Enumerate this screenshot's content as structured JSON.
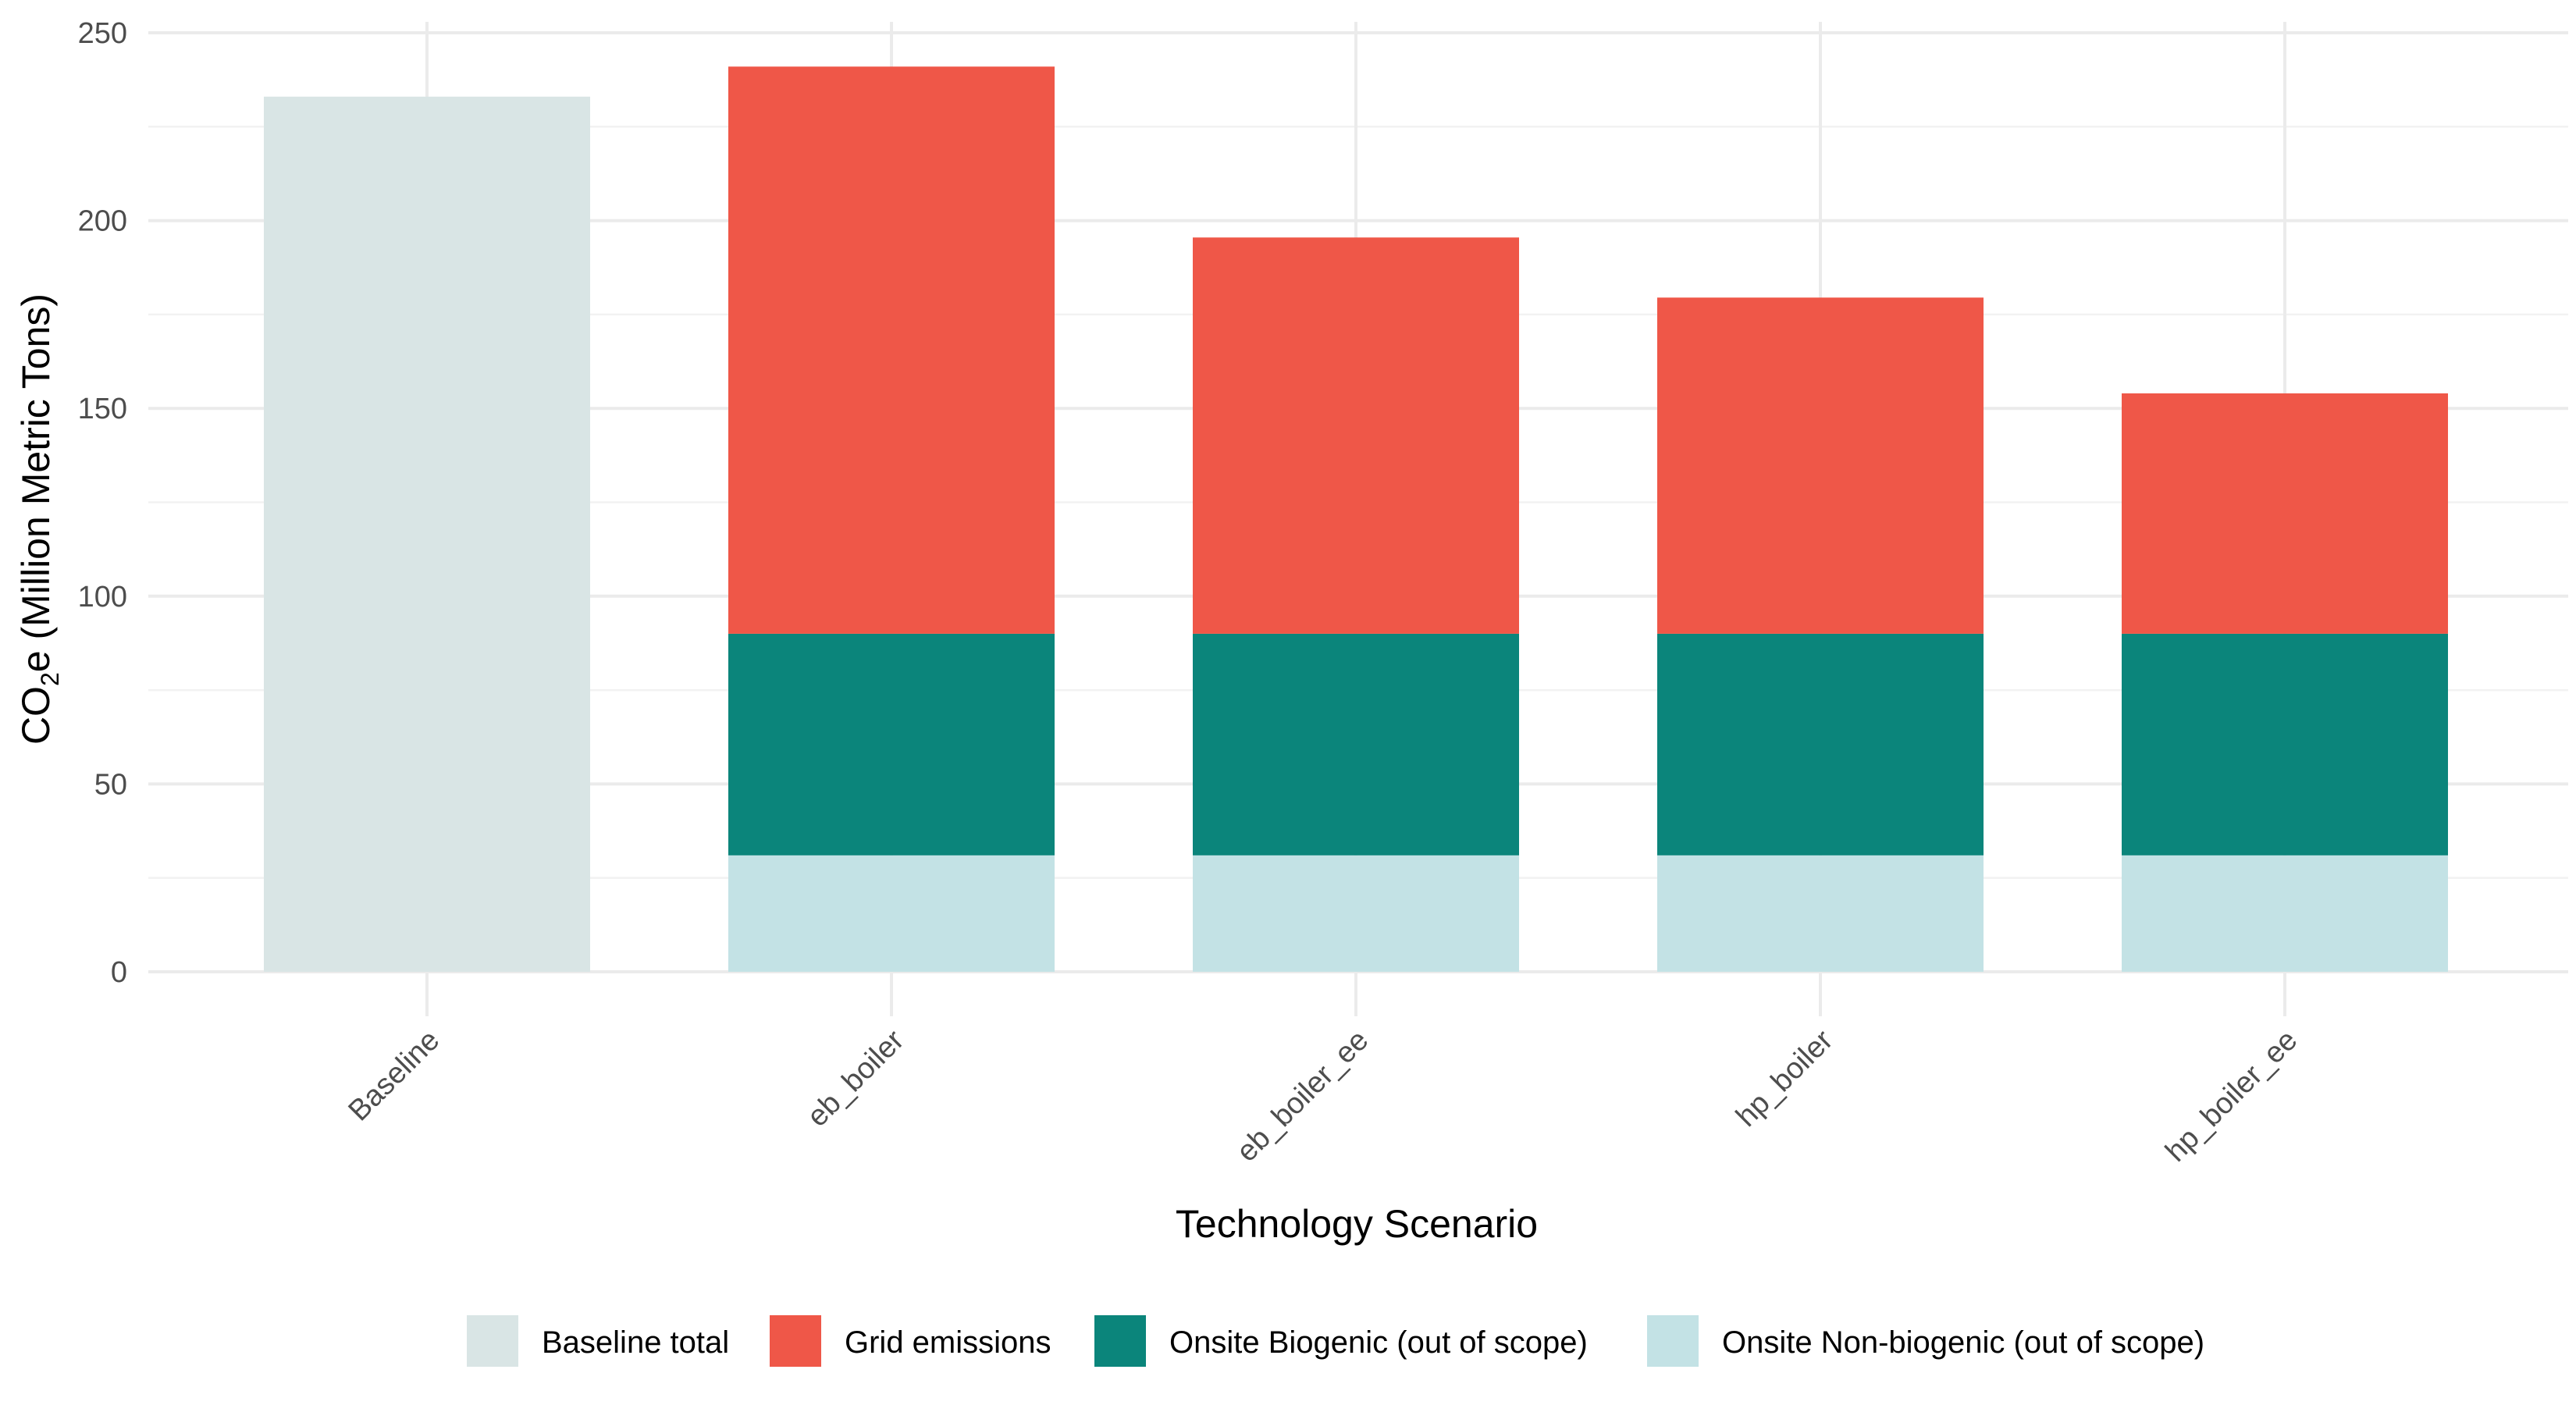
{
  "chart_data": {
    "type": "bar",
    "stacked": true,
    "title": "",
    "xlabel": "Technology Scenario",
    "ylabel": {
      "prefix": "CO",
      "subscript": "2",
      "suffix": "e (Million Metric Tons)"
    },
    "ylim": [
      0,
      250
    ],
    "yticks": [
      0,
      50,
      100,
      150,
      200,
      250
    ],
    "grid": true,
    "legend_position": "bottom",
    "categories": [
      "Baseline",
      "eb_boiler",
      "eb_boiler_ee",
      "hp_boiler",
      "hp_boiler_ee"
    ],
    "series": [
      {
        "name": "Baseline total",
        "color": "#d9e5e5",
        "values": [
          233,
          0,
          0,
          0,
          0
        ]
      },
      {
        "name": "Onsite Non-biogenic (out of scope)",
        "color": "#c3e2e5",
        "values": [
          0,
          31,
          31,
          31,
          31
        ]
      },
      {
        "name": "Onsite Biogenic (out of scope)",
        "color": "#0b857b",
        "values": [
          0,
          59,
          59,
          59,
          59
        ]
      },
      {
        "name": "Grid emissions",
        "color": "#ef5748",
        "values": [
          0,
          151,
          105.5,
          89.5,
          64
        ]
      }
    ],
    "legend_order": [
      "Baseline total",
      "Grid emissions",
      "Onsite Biogenic (out of scope)",
      "Onsite Non-biogenic (out of scope)"
    ]
  }
}
